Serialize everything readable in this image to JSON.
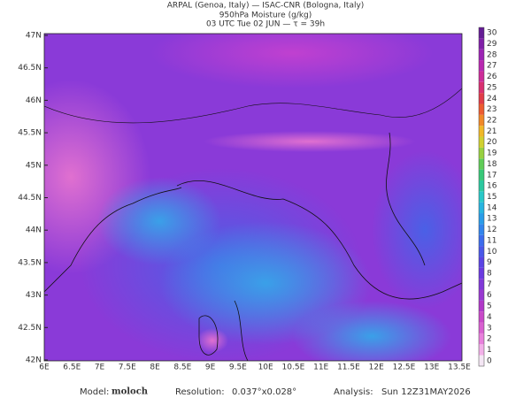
{
  "header": {
    "line1": "ARPAL (Genoa, Italy)  —  ISAC-CNR (Bologna, Italy)",
    "line2": "950hPa Moisture (g/kg)",
    "line3": "03 UTC Tue 02 JUN  —  τ = 39h"
  },
  "map": {
    "lat_labels": [
      "47N",
      "46.5N",
      "46N",
      "45.5N",
      "45N",
      "44.5N",
      "44N",
      "43.5N",
      "43N",
      "42.5N",
      "42N"
    ],
    "lon_labels": [
      "6E",
      "6.5E",
      "7E",
      "7.5E",
      "8E",
      "8.5E",
      "9E",
      "9.5E",
      "10E",
      "10.5E",
      "11E",
      "11.5E",
      "12E",
      "12.5E",
      "13E",
      "13.5E"
    ]
  },
  "colorbar": {
    "labels": [
      0,
      1,
      2,
      3,
      4,
      5,
      6,
      7,
      8,
      9,
      10,
      11,
      12,
      13,
      14,
      15,
      16,
      17,
      18,
      19,
      20,
      21,
      22,
      23,
      24,
      25,
      26,
      27,
      28,
      29,
      30
    ],
    "colors": [
      "#f4e6f4",
      "#f2b0e8",
      "#e880dc",
      "#d860d0",
      "#c848c8",
      "#b038c8",
      "#9838d0",
      "#8038d8",
      "#6a3ae0",
      "#5a44e4",
      "#4a58e8",
      "#3c6cec",
      "#3284ec",
      "#2a9ce8",
      "#28b4e0",
      "#28c8c8",
      "#2cc8a0",
      "#38c878",
      "#60cc58",
      "#98d040",
      "#d0d030",
      "#f0b828",
      "#f08828",
      "#ec5c30",
      "#e03c48",
      "#d83070",
      "#cc2c98",
      "#b828b0",
      "#9c24b4",
      "#8020a8",
      "#641c94"
    ]
  },
  "footer": {
    "model_label": "Model:",
    "model": "moloch",
    "resolution_label": "Resolution:",
    "resolution": "0.037°x0.028°",
    "analysis_label": "Analysis:",
    "analysis": "Sun 12Z31MAY2026"
  }
}
